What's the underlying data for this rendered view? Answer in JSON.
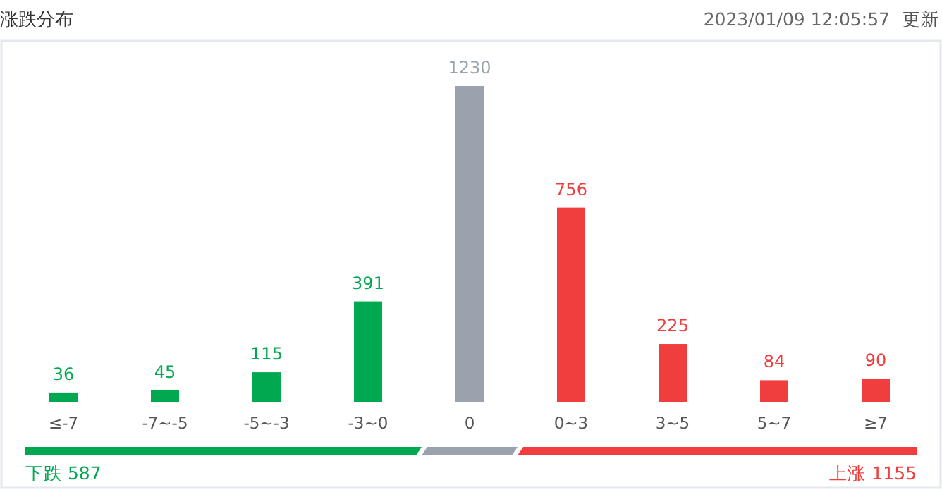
{
  "chart_data": {
    "type": "bar",
    "title": "涨跌分布",
    "categories": [
      "≤-7",
      "-7~-5",
      "-5~-3",
      "-3~0",
      "0",
      "0~3",
      "3~5",
      "5~7",
      "≥7"
    ],
    "values": [
      36,
      45,
      115,
      391,
      1230,
      756,
      225,
      84,
      90
    ],
    "colors": [
      "#00a84f",
      "#00a84f",
      "#00a84f",
      "#00a84f",
      "#9aa3ad",
      "#f03d3d",
      "#f03d3d",
      "#f03d3d",
      "#f03d3d"
    ],
    "data_labels": true,
    "annotations": [
      "2023/01/09 12:05:57",
      "更新",
      "下跌 587",
      "上涨 1155"
    ]
  }
}
